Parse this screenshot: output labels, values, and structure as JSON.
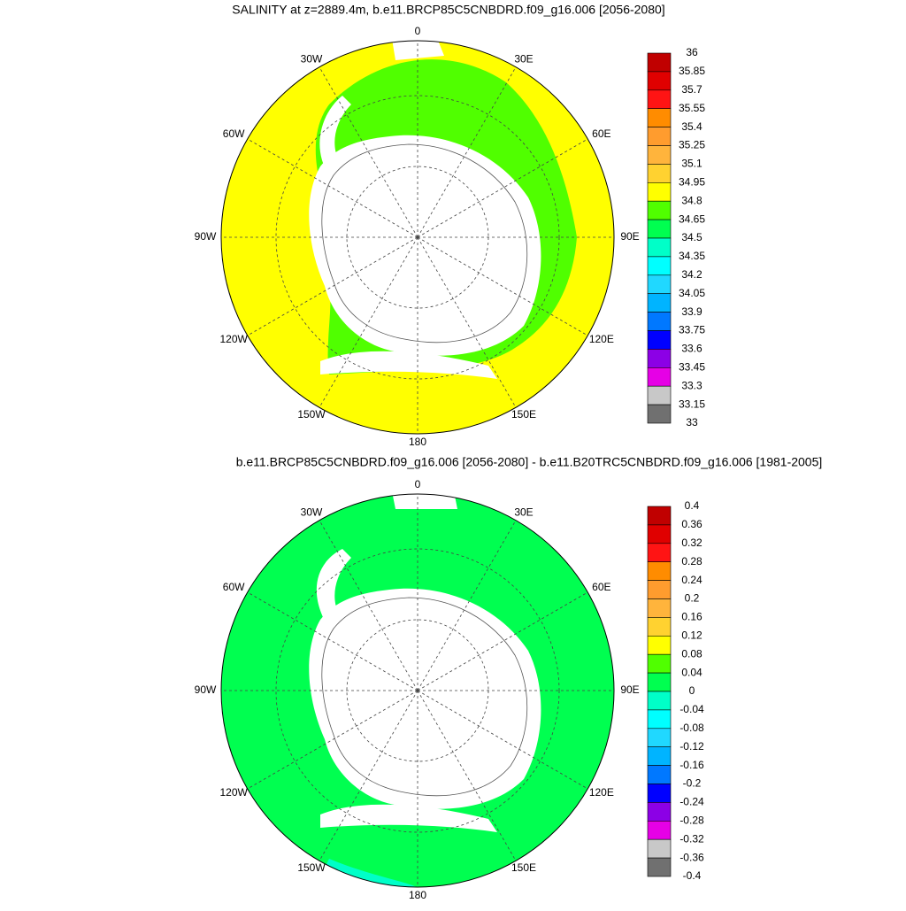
{
  "panels": [
    {
      "title": "SALINITY at z=2889.4m, b.e11.BRCP85C5CNBDRD.f09_g16.006 [2056-2080]",
      "lon_labels": [
        "0",
        "30E",
        "60E",
        "90E",
        "120E",
        "150E",
        "180",
        "150W",
        "120W",
        "90W",
        "60W",
        "30W"
      ],
      "colorbar": {
        "levels": [
          36,
          35.85,
          35.7,
          35.55,
          35.4,
          35.25,
          35.1,
          34.95,
          34.8,
          34.65,
          34.5,
          34.35,
          34.2,
          34.05,
          33.9,
          33.75,
          33.6,
          33.45,
          33.3,
          33.15,
          33
        ],
        "colors": [
          "#c00000",
          "#e00000",
          "#ff1414",
          "#ff8c00",
          "#ff9c2e",
          "#ffb43c",
          "#ffd230",
          "#ffff00",
          "#50ff00",
          "#00ff50",
          "#00ffc8",
          "#00ffff",
          "#20d8ff",
          "#00b4ff",
          "#0078ff",
          "#0000ff",
          "#8c00e6",
          "#e600e6",
          "#c8c8c8",
          "#707070"
        ]
      }
    },
    {
      "title": "b.e11.BRCP85C5CNBDRD.f09_g16.006 [2056-2080] - b.e11.B20TRC5CNBDRD.f09_g16.006 [1981-2005]",
      "lon_labels": [
        "0",
        "30E",
        "60E",
        "90E",
        "120E",
        "150E",
        "180",
        "150W",
        "120W",
        "90W",
        "60W",
        "30W"
      ],
      "colorbar": {
        "levels": [
          0.4,
          0.36,
          0.32,
          0.28,
          0.24,
          0.2,
          0.16,
          0.12,
          0.08,
          0.04,
          0,
          -0.04,
          -0.08,
          -0.12,
          -0.16,
          -0.2,
          -0.24,
          -0.28,
          -0.32,
          -0.36,
          -0.4
        ],
        "colors": [
          "#c00000",
          "#e00000",
          "#ff1414",
          "#ff8c00",
          "#ff9c2e",
          "#ffb43c",
          "#ffd230",
          "#ffff00",
          "#50ff00",
          "#00ff50",
          "#00ffc8",
          "#00ffff",
          "#20d8ff",
          "#00b4ff",
          "#0078ff",
          "#0000ff",
          "#8c00e6",
          "#e600e6",
          "#c8c8c8",
          "#707070"
        ]
      }
    }
  ]
}
